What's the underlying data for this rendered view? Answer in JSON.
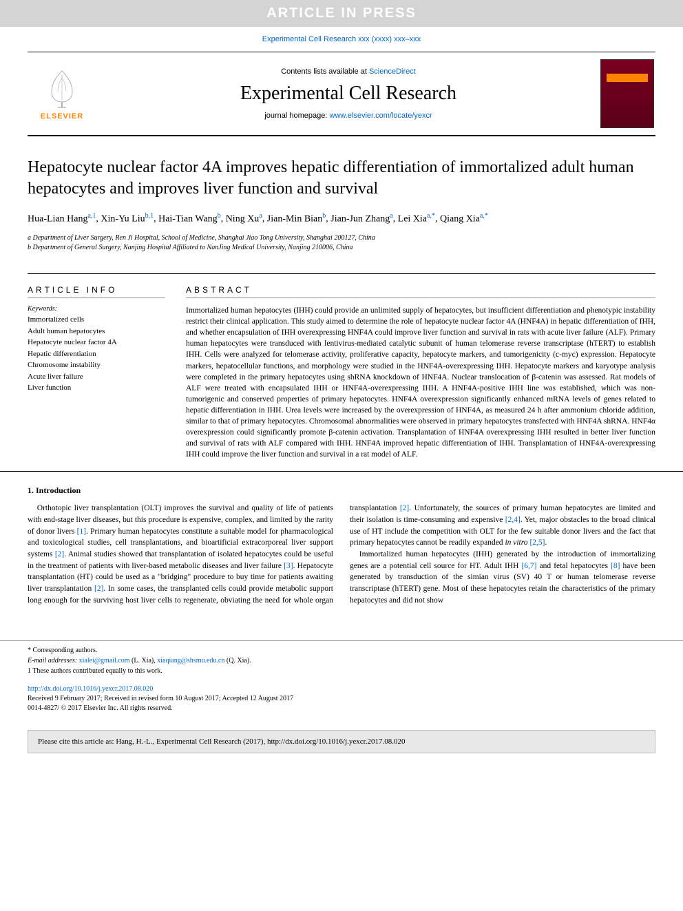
{
  "banner": "ARTICLE IN PRESS",
  "journal_ref": {
    "prefix": "",
    "link_text": "Experimental Cell Research xxx (xxxx) xxx–xxx"
  },
  "header": {
    "contents_prefix": "Contents lists available at ",
    "contents_link": "ScienceDirect",
    "journal_name": "Experimental Cell Research",
    "homepage_prefix": "journal homepage: ",
    "homepage_link": "www.elsevier.com/locate/yexcr",
    "publisher_label": "ELSEVIER"
  },
  "article": {
    "title": "Hepatocyte nuclear factor 4A improves hepatic differentiation of immortalized adult human hepatocytes and improves liver function and survival",
    "authors_html": "Hua-Lian Hang<sup class='sup'>a,1</sup>, Xin-Yu Liu<sup class='sup'>b,1</sup>, Hai-Tian Wang<sup class='sup'>b</sup>, Ning Xu<sup class='sup'>a</sup>, Jian-Min Bian<sup class='sup'>b</sup>, Jian-Jun Zhang<sup class='sup'>a</sup>, Lei Xia<sup class='sup'>a,*</sup>, Qiang Xia<sup class='sup'>a,*</sup>",
    "affiliations": [
      "a Department of Liver Surgery, Ren Ji Hospital, School of Medicine, Shanghai Jiao Tong University, Shanghai 200127, China",
      "b Department of General Surgery, Nanjing Hospital Affiliated to NanJing Medical University, Nanjing 210006, China"
    ]
  },
  "info": {
    "heading": "ARTICLE INFO",
    "keywords_label": "Keywords:",
    "keywords": [
      "Immortalized cells",
      "Adult human hepatocytes",
      "Hepatocyte nuclear factor 4A",
      "Hepatic differentiation",
      "Chromosome instability",
      "Acute liver failure",
      "Liver function"
    ]
  },
  "abstract": {
    "heading": "ABSTRACT",
    "text": "Immortalized human hepatocytes (IHH) could provide an unlimited supply of hepatocytes, but insufficient differentiation and phenotypic instability restrict their clinical application. This study aimed to determine the role of hepatocyte nuclear factor 4A (HNF4A) in hepatic differentiation of IHH, and whether encapsulation of IHH overexpressing HNF4A could improve liver function and survival in rats with acute liver failure (ALF). Primary human hepatocytes were transduced with lentivirus-mediated catalytic subunit of human telomerase reverse transcriptase (hTERT) to establish IHH. Cells were analyzed for telomerase activity, proliferative capacity, hepatocyte markers, and tumorigenicity (c-myc) expression. Hepatocyte markers, hepatocellular functions, and morphology were studied in the HNF4A-overexpressing IHH. Hepatocyte markers and karyotype analysis were completed in the primary hepatocytes using shRNA knockdown of HNF4A. Nuclear translocation of β-catenin was assessed. Rat models of ALF were treated with encapsulated IHH or HNF4A-overexpressing IHH. A HNF4A-positive IHH line was established, which was non-tumorigenic and conserved properties of primary hepatocytes. HNF4A overexpression significantly enhanced mRNA levels of genes related to hepatic differentiation in IHH. Urea levels were increased by the overexpression of HNF4A, as measured 24 h after ammonium chloride addition, similar to that of primary hepatocytes. Chromosomal abnormalities were observed in primary hepatocytes transfected with HNF4A shRNA. HNF4α overexpression could significantly promote β-catenin activation. Transplantation of HNF4A overexpressing IHH resulted in better liver function and survival of rats with ALF compared with IHH. HNF4A improved hepatic differentiation of IHH. Transplantation of HNF4A-overexpressing IHH could improve the liver function and survival in a rat model of ALF."
  },
  "intro": {
    "heading": "1. Introduction",
    "p1": "Orthotopic liver transplantation (OLT) improves the survival and quality of life of patients with end-stage liver diseases, but this procedure is expensive, complex, and limited by the rarity of donor livers [1]. Primary human hepatocytes constitute a suitable model for pharmacological and toxicological studies, cell transplantations, and bioartificial extracorporeal liver support systems [2]. Animal studies showed that transplantation of isolated hepatocytes could be useful in the treatment of patients with liver-based metabolic diseases and liver failure [3]. Hepatocyte transplantation (HT) could be used as a \"bridging\" procedure to buy time for patients awaiting liver transplantation [2]. In some cases, the transplanted cells could provide metabolic",
    "p2": "support long enough for the surviving host liver cells to regenerate, obviating the need for whole organ transplantation [2]. Unfortunately, the sources of primary human hepatocytes are limited and their isolation is time-consuming and expensive [2,4]. Yet, major obstacles to the broad clinical use of HT include the competition with OLT for the few suitable donor livers and the fact that primary hepatocytes cannot be readily expanded in vitro [2,5].",
    "p3": "Immortalized human hepatocytes (IHH) generated by the introduction of immortalizing genes are a potential cell source for HT. Adult IHH [6,7] and fetal hepatocytes [8] have been generated by transduction of the simian virus (SV) 40 T or human telomerase reverse transcriptase (hTERT) gene. Most of these hepatocytes retain the characteristics of the primary hepatocytes and did not show"
  },
  "footer": {
    "corresponding": "* Corresponding authors.",
    "emails_label": "E-mail addresses: ",
    "email1": "xialei@gmail.com",
    "email1_name": " (L. Xia), ",
    "email2": "xiaqiang@shsmu.edu.cn",
    "email2_name": " (Q. Xia).",
    "equal": "1 These authors contributed equally to this work.",
    "doi": "http://dx.doi.org/10.1016/j.yexcr.2017.08.020",
    "received": "Received 9 February 2017; Received in revised form 10 August 2017; Accepted 12 August 2017",
    "copyright": "0014-4827/ © 2017 Elsevier Inc. All rights reserved."
  },
  "cite": "Please cite this article as: Hang, H.-L., Experimental Cell Research (2017), http://dx.doi.org/10.1016/j.yexcr.2017.08.020",
  "colors": {
    "banner_bg": "#d4d4d4",
    "link": "#0066cc",
    "elsevier_orange": "#ff8200",
    "cover_bg": "#7a001f"
  }
}
